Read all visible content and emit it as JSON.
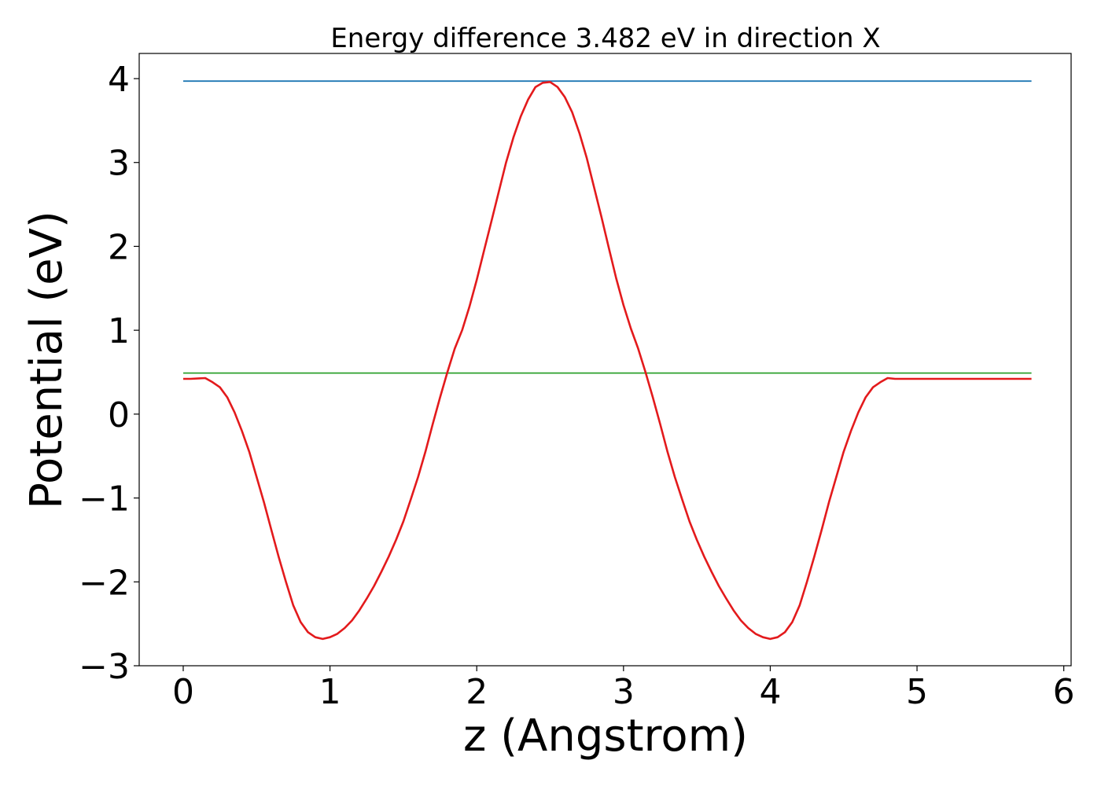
{
  "chart_data": {
    "type": "line",
    "title": "Energy difference 3.482 eV in direction X",
    "xlabel": "z (Angstrom)",
    "ylabel": "Potential (eV)",
    "xlim": [
      -0.3,
      6.05
    ],
    "ylim": [
      -3.0,
      4.3
    ],
    "xticks": [
      0,
      1,
      2,
      3,
      4,
      5,
      6
    ],
    "xtick_labels": [
      "0",
      "1",
      "2",
      "3",
      "4",
      "5",
      "6"
    ],
    "yticks": [
      -3,
      -2,
      -1,
      0,
      1,
      2,
      3,
      4
    ],
    "ytick_labels": [
      "−3",
      "−2",
      "−1",
      "0",
      "1",
      "2",
      "3",
      "4"
    ],
    "grid": false,
    "series": [
      {
        "color": "#1f77b4",
        "x": [
          0,
          5.78
        ],
        "y": [
          3.97,
          3.97
        ]
      },
      {
        "color": "#2ca02c",
        "x": [
          0,
          5.78
        ],
        "y": [
          0.49,
          0.49
        ]
      },
      {
        "color": "#e31a1c",
        "x": [
          0.0,
          0.05,
          0.15,
          0.2,
          0.25,
          0.3,
          0.35,
          0.4,
          0.45,
          0.5,
          0.55,
          0.6,
          0.65,
          0.7,
          0.75,
          0.8,
          0.85,
          0.9,
          0.95,
          1.0,
          1.05,
          1.1,
          1.15,
          1.2,
          1.25,
          1.3,
          1.35,
          1.4,
          1.45,
          1.5,
          1.55,
          1.6,
          1.65,
          1.7,
          1.75,
          1.8,
          1.85,
          1.9,
          1.95,
          2.0,
          2.05,
          2.1,
          2.15,
          2.2,
          2.25,
          2.3,
          2.35,
          2.4,
          2.45,
          2.5,
          2.55,
          2.6,
          2.65,
          2.7,
          2.75,
          2.8,
          2.85,
          2.9,
          2.95,
          3.0,
          3.05,
          3.1,
          3.15,
          3.2,
          3.25,
          3.3,
          3.35,
          3.4,
          3.45,
          3.5,
          3.55,
          3.6,
          3.65,
          3.7,
          3.75,
          3.8,
          3.85,
          3.9,
          3.95,
          4.0,
          4.05,
          4.1,
          4.15,
          4.2,
          4.25,
          4.3,
          4.35,
          4.4,
          4.45,
          4.5,
          4.55,
          4.6,
          4.65,
          4.7,
          4.75,
          4.8,
          4.85,
          4.9,
          4.95,
          5.0,
          5.05,
          5.1,
          5.15,
          5.2,
          5.25,
          5.3,
          5.35,
          5.4,
          5.45,
          5.5,
          5.55,
          5.6,
          5.65,
          5.7,
          5.78
        ],
        "y": [
          0.42,
          0.42,
          0.43,
          0.38,
          0.32,
          0.2,
          0.02,
          -0.2,
          -0.45,
          -0.75,
          -1.05,
          -1.38,
          -1.7,
          -2.0,
          -2.28,
          -2.48,
          -2.6,
          -2.66,
          -2.68,
          -2.66,
          -2.62,
          -2.55,
          -2.46,
          -2.34,
          -2.2,
          -2.05,
          -1.88,
          -1.7,
          -1.5,
          -1.28,
          -1.02,
          -0.75,
          -0.45,
          -0.12,
          0.2,
          0.5,
          0.78,
          1.0,
          1.28,
          1.6,
          1.95,
          2.3,
          2.65,
          3.0,
          3.3,
          3.55,
          3.75,
          3.9,
          3.95,
          3.96,
          3.9,
          3.78,
          3.6,
          3.35,
          3.05,
          2.7,
          2.35,
          1.98,
          1.62,
          1.3,
          1.02,
          0.78,
          0.5,
          0.2,
          -0.12,
          -0.45,
          -0.75,
          -1.02,
          -1.28,
          -1.5,
          -1.7,
          -1.88,
          -2.05,
          -2.2,
          -2.34,
          -2.46,
          -2.55,
          -2.62,
          -2.66,
          -2.68,
          -2.66,
          -2.6,
          -2.48,
          -2.28,
          -2.0,
          -1.7,
          -1.38,
          -1.05,
          -0.75,
          -0.45,
          -0.2,
          0.02,
          0.2,
          0.32,
          0.38,
          0.43,
          0.42,
          0.42,
          0.42,
          0.42,
          0.42,
          0.42,
          0.42,
          0.42,
          0.42,
          0.42,
          0.42,
          0.42,
          0.42,
          0.42,
          0.42,
          0.42,
          0.42,
          0.42,
          0.42
        ]
      }
    ]
  }
}
